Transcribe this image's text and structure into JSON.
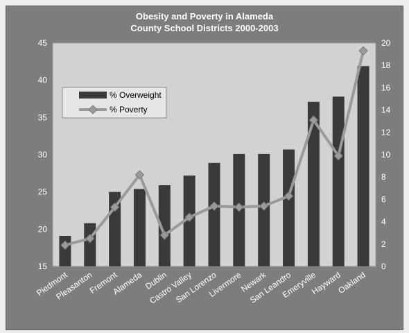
{
  "chart_data": {
    "type": "bar",
    "title_line1": "Obesity and Poverty in Alameda",
    "title_line2": "County School Districts 2000-2003",
    "categories": [
      "Piedmont",
      "Pleasanton",
      "Fremont",
      "Alameda",
      "Dublin",
      "Castro Valley",
      "San Lorenzo",
      "Livermore",
      "Newark",
      "San Leandro",
      "Emeryville",
      "Hayward",
      "Oakland"
    ],
    "series": [
      {
        "name": "% Overweight",
        "type": "bar",
        "axis": "left",
        "color": "#3a3a3a",
        "values": [
          19.1,
          20.8,
          25.0,
          25.4,
          25.9,
          27.2,
          28.9,
          30.1,
          30.1,
          30.7,
          37.1,
          37.8,
          41.9
        ]
      },
      {
        "name": "% Poverty",
        "type": "line",
        "axis": "right",
        "color": "#9a9a9a",
        "values": [
          1.9,
          2.5,
          5.3,
          8.2,
          2.8,
          4.4,
          5.4,
          5.3,
          5.4,
          6.3,
          13.1,
          9.9,
          19.3
        ]
      }
    ],
    "left_axis": {
      "min": 15,
      "max": 45,
      "ticks": [
        "15",
        "20",
        "25",
        "30",
        "35",
        "40",
        "45"
      ]
    },
    "right_axis": {
      "min": 0,
      "max": 20,
      "ticks": [
        "0",
        "2",
        "4",
        "6",
        "8",
        "10",
        "12",
        "14",
        "16",
        "18",
        "20"
      ]
    },
    "legend": {
      "placement": "top-left"
    },
    "grid": false,
    "colors": {
      "frame": "#7d7d7d",
      "plot": "#d2d2d2",
      "bar": "#3a3a3a",
      "line": "#9a9a9a",
      "text": "#ffffff"
    }
  }
}
